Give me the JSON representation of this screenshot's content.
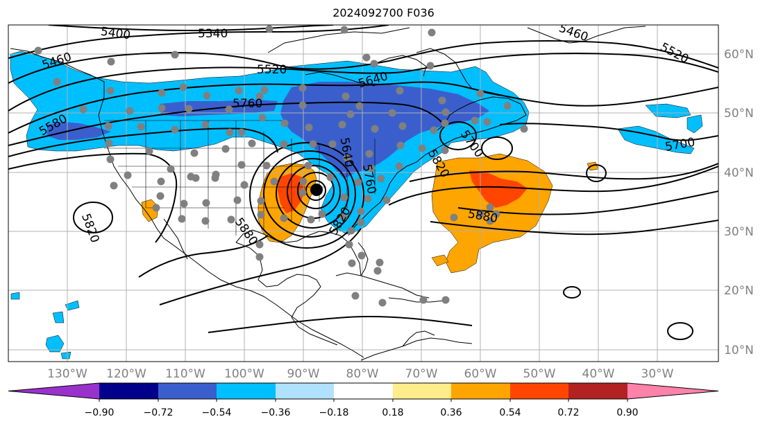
{
  "title": "2024092700 F036",
  "lon_labels": [
    "130°W",
    "120°W",
    "110°W",
    "100°W",
    "90°W",
    "80°W",
    "70°W",
    "60°W",
    "50°W",
    "40°W",
    "30°W"
  ],
  "lat_labels": [
    "60°N",
    "50°N",
    "40°N",
    "30°N",
    "20°N",
    "10°N"
  ],
  "contour_labels": [
    "5400",
    "5340",
    "5460",
    "5460",
    "5520",
    "5520",
    "5580",
    "5640",
    "5700",
    "5700",
    "5760",
    "5820",
    "5820",
    "5880",
    "5880",
    "5640",
    "5760",
    "5820"
  ],
  "colorbar": {
    "ticks": [
      "−0.90",
      "−0.72",
      "−0.54",
      "−0.36",
      "−0.18",
      "0.18",
      "0.36",
      "0.54",
      "0.72",
      "0.90"
    ],
    "colors": [
      "#9932cc",
      "#00008b",
      "#3a5fcd",
      "#00bfff",
      "#b0e2ff",
      "#ffffff",
      "#ffec8b",
      "#ffa500",
      "#ff4500",
      "#b22222",
      "#ff82ab"
    ]
  },
  "colors": {
    "neg_light": "#00bfff",
    "neg_mid": "#3a5fcd",
    "neg_pale": "#b0e2ff",
    "pos_orange": "#ffa500",
    "pos_red": "#ff4500",
    "station_dot": "#808080",
    "low_center": "#000000",
    "grid": "#b0b0b0"
  }
}
